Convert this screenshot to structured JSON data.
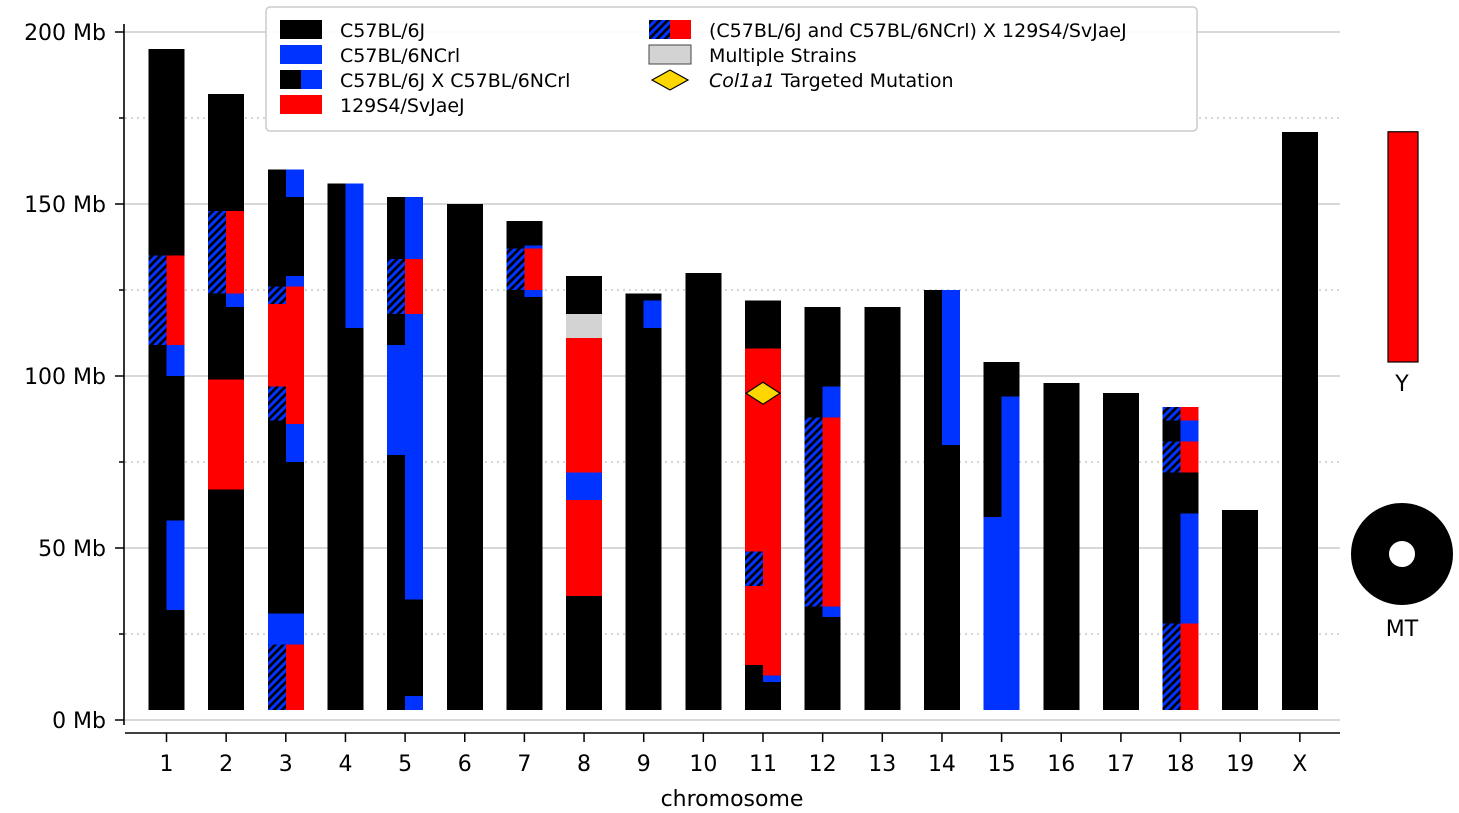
{
  "chart_data": {
    "type": "bar",
    "title": "",
    "xlabel": "chromosome",
    "ylabel": "",
    "ylim": [
      0,
      200
    ],
    "y_ticks": [
      0,
      50,
      100,
      150,
      200
    ],
    "y_tick_labels": [
      "0 Mb",
      "50 Mb",
      "100 Mb",
      "150 Mb",
      "200 Mb"
    ],
    "grid": "horizontal",
    "legend_placement": "top-center",
    "colors": {
      "b6j": "#000000",
      "ncrl": "#0033ff",
      "s129": "#ff0000",
      "multi": "#d3d3d3",
      "target": "#ffd700"
    },
    "legend": [
      {
        "key": "b6j",
        "label": "C57BL/6J"
      },
      {
        "key": "ncrl",
        "label": "C57BL/6NCrl"
      },
      {
        "key": "mix",
        "label": "C57BL/6J X C57BL/6NCrl"
      },
      {
        "key": "s129",
        "label": "129S4/SvJaeJ"
      },
      {
        "key": "mix129",
        "label": "(C57BL/6J and C57BL/6NCrl) X 129S4/SvJaeJ"
      },
      {
        "key": "multi",
        "label": "Multiple Strains"
      },
      {
        "key": "target",
        "label_italic": "Col1a1",
        "label_rest": " Targeted Mutation"
      }
    ],
    "categories": [
      "1",
      "2",
      "3",
      "4",
      "5",
      "6",
      "7",
      "8",
      "9",
      "10",
      "11",
      "12",
      "13",
      "14",
      "15",
      "16",
      "17",
      "18",
      "19",
      "X"
    ],
    "chromosomes": [
      {
        "name": "1",
        "length": 195,
        "left": [
          [
            0,
            109,
            "b6j"
          ],
          [
            109,
            135,
            "hb"
          ],
          [
            135,
            195,
            "b6j"
          ]
        ],
        "right": [
          [
            0,
            32,
            "b6j"
          ],
          [
            32,
            58,
            "ncrl"
          ],
          [
            58,
            100,
            "b6j"
          ],
          [
            100,
            109,
            "ncrl"
          ],
          [
            109,
            135,
            "s129"
          ],
          [
            135,
            195,
            "b6j"
          ]
        ]
      },
      {
        "name": "2",
        "length": 182,
        "left": [
          [
            0,
            67,
            "b6j"
          ],
          [
            67,
            99,
            "s129"
          ],
          [
            99,
            124,
            "b6j"
          ],
          [
            124,
            148,
            "hb"
          ],
          [
            148,
            182,
            "b6j"
          ]
        ],
        "right": [
          [
            0,
            67,
            "b6j"
          ],
          [
            67,
            99,
            "s129"
          ],
          [
            99,
            120,
            "b6j"
          ],
          [
            120,
            124,
            "ncrl"
          ],
          [
            124,
            148,
            "s129"
          ],
          [
            148,
            182,
            "b6j"
          ]
        ]
      },
      {
        "name": "3",
        "length": 160,
        "left": [
          [
            0,
            22,
            "hb"
          ],
          [
            22,
            31,
            "ncrl"
          ],
          [
            31,
            87,
            "b6j"
          ],
          [
            87,
            97,
            "hb"
          ],
          [
            97,
            121,
            "s129"
          ],
          [
            121,
            126,
            "hb"
          ],
          [
            126,
            160,
            "b6j"
          ]
        ],
        "right": [
          [
            0,
            22,
            "s129"
          ],
          [
            22,
            31,
            "ncrl"
          ],
          [
            31,
            75,
            "b6j"
          ],
          [
            75,
            86,
            "ncrl"
          ],
          [
            86,
            126,
            "s129"
          ],
          [
            126,
            129,
            "ncrl"
          ],
          [
            129,
            152,
            "b6j"
          ],
          [
            152,
            160,
            "ncrl"
          ]
        ]
      },
      {
        "name": "4",
        "length": 156,
        "left": [
          [
            0,
            156,
            "b6j"
          ]
        ],
        "right": [
          [
            0,
            114,
            "b6j"
          ],
          [
            114,
            156,
            "ncrl"
          ]
        ]
      },
      {
        "name": "5",
        "length": 152,
        "left": [
          [
            0,
            77,
            "b6j"
          ],
          [
            77,
            109,
            "ncrl"
          ],
          [
            109,
            118,
            "b6j"
          ],
          [
            118,
            134,
            "hb"
          ],
          [
            134,
            152,
            "b6j"
          ]
        ],
        "right": [
          [
            0,
            7,
            "ncrl"
          ],
          [
            7,
            35,
            "b6j"
          ],
          [
            35,
            118,
            "ncrl"
          ],
          [
            118,
            134,
            "s129"
          ],
          [
            134,
            152,
            "ncrl"
          ]
        ]
      },
      {
        "name": "6",
        "length": 150,
        "left": [
          [
            0,
            150,
            "b6j"
          ]
        ],
        "right": [
          [
            0,
            150,
            "b6j"
          ]
        ]
      },
      {
        "name": "7",
        "length": 145,
        "left": [
          [
            0,
            125,
            "b6j"
          ],
          [
            125,
            137,
            "hb"
          ],
          [
            137,
            145,
            "b6j"
          ]
        ],
        "right": [
          [
            0,
            123,
            "b6j"
          ],
          [
            123,
            125,
            "ncrl"
          ],
          [
            125,
            137,
            "s129"
          ],
          [
            137,
            138,
            "ncrl"
          ],
          [
            138,
            145,
            "b6j"
          ]
        ]
      },
      {
        "name": "8",
        "length": 129,
        "left": [
          [
            0,
            36,
            "b6j"
          ],
          [
            36,
            64,
            "s129"
          ],
          [
            64,
            72,
            "ncrl"
          ],
          [
            72,
            111,
            "s129"
          ],
          [
            111,
            118,
            "multi"
          ],
          [
            118,
            129,
            "b6j"
          ]
        ],
        "right": [
          [
            0,
            36,
            "b6j"
          ],
          [
            36,
            64,
            "s129"
          ],
          [
            64,
            72,
            "ncrl"
          ],
          [
            72,
            111,
            "s129"
          ],
          [
            111,
            118,
            "multi"
          ],
          [
            118,
            129,
            "b6j"
          ]
        ]
      },
      {
        "name": "9",
        "length": 124,
        "left": [
          [
            0,
            124,
            "b6j"
          ]
        ],
        "right": [
          [
            0,
            114,
            "b6j"
          ],
          [
            114,
            122,
            "ncrl"
          ],
          [
            122,
            124,
            "b6j"
          ]
        ]
      },
      {
        "name": "10",
        "length": 130,
        "left": [
          [
            0,
            130,
            "b6j"
          ]
        ],
        "right": [
          [
            0,
            130,
            "b6j"
          ]
        ]
      },
      {
        "name": "11",
        "length": 122,
        "left": [
          [
            0,
            16,
            "b6j"
          ],
          [
            16,
            39,
            "s129"
          ],
          [
            39,
            49,
            "hb"
          ],
          [
            49,
            108,
            "s129"
          ],
          [
            108,
            122,
            "b6j"
          ]
        ],
        "right": [
          [
            0,
            11,
            "b6j"
          ],
          [
            11,
            13,
            "ncrl"
          ],
          [
            13,
            108,
            "s129"
          ],
          [
            108,
            122,
            "b6j"
          ]
        ]
      },
      {
        "name": "12",
        "length": 120,
        "left": [
          [
            0,
            33,
            "b6j"
          ],
          [
            33,
            88,
            "hb"
          ],
          [
            88,
            120,
            "b6j"
          ]
        ],
        "right": [
          [
            0,
            30,
            "b6j"
          ],
          [
            30,
            33,
            "ncrl"
          ],
          [
            33,
            88,
            "s129"
          ],
          [
            88,
            97,
            "ncrl"
          ],
          [
            97,
            120,
            "b6j"
          ]
        ]
      },
      {
        "name": "13",
        "length": 120,
        "left": [
          [
            0,
            120,
            "b6j"
          ]
        ],
        "right": [
          [
            0,
            120,
            "b6j"
          ]
        ]
      },
      {
        "name": "14",
        "length": 125,
        "left": [
          [
            0,
            125,
            "b6j"
          ]
        ],
        "right": [
          [
            0,
            80,
            "b6j"
          ],
          [
            80,
            125,
            "ncrl"
          ]
        ]
      },
      {
        "name": "15",
        "length": 104,
        "left": [
          [
            0,
            59,
            "ncrl"
          ],
          [
            59,
            104,
            "b6j"
          ]
        ],
        "right": [
          [
            0,
            94,
            "ncrl"
          ],
          [
            94,
            104,
            "b6j"
          ]
        ]
      },
      {
        "name": "16",
        "length": 98,
        "left": [
          [
            0,
            98,
            "b6j"
          ]
        ],
        "right": [
          [
            0,
            98,
            "b6j"
          ]
        ]
      },
      {
        "name": "17",
        "length": 95,
        "left": [
          [
            0,
            95,
            "b6j"
          ]
        ],
        "right": [
          [
            0,
            95,
            "b6j"
          ]
        ]
      },
      {
        "name": "18",
        "length": 91,
        "left": [
          [
            0,
            28,
            "hb"
          ],
          [
            28,
            72,
            "b6j"
          ],
          [
            72,
            81,
            "hb"
          ],
          [
            81,
            87,
            "b6j"
          ],
          [
            87,
            91,
            "hb"
          ]
        ],
        "right": [
          [
            0,
            28,
            "s129"
          ],
          [
            28,
            60,
            "ncrl"
          ],
          [
            60,
            72,
            "b6j"
          ],
          [
            72,
            81,
            "s129"
          ],
          [
            81,
            87,
            "ncrl"
          ],
          [
            87,
            91,
            "s129"
          ]
        ]
      },
      {
        "name": "19",
        "length": 61,
        "left": [
          [
            0,
            61,
            "b6j"
          ]
        ],
        "right": [
          [
            0,
            61,
            "b6j"
          ]
        ]
      },
      {
        "name": "X",
        "length": 171,
        "left": [
          [
            0,
            171,
            "b6j"
          ]
        ],
        "right": [
          [
            0,
            171,
            "b6j"
          ]
        ]
      }
    ],
    "mutation_marker": {
      "chromosome": "11",
      "position": 95
    },
    "y_chromosome": {
      "label": "Y",
      "strain": "s129"
    },
    "mt_chromosome": {
      "label": "MT",
      "strain": "b6j"
    }
  }
}
